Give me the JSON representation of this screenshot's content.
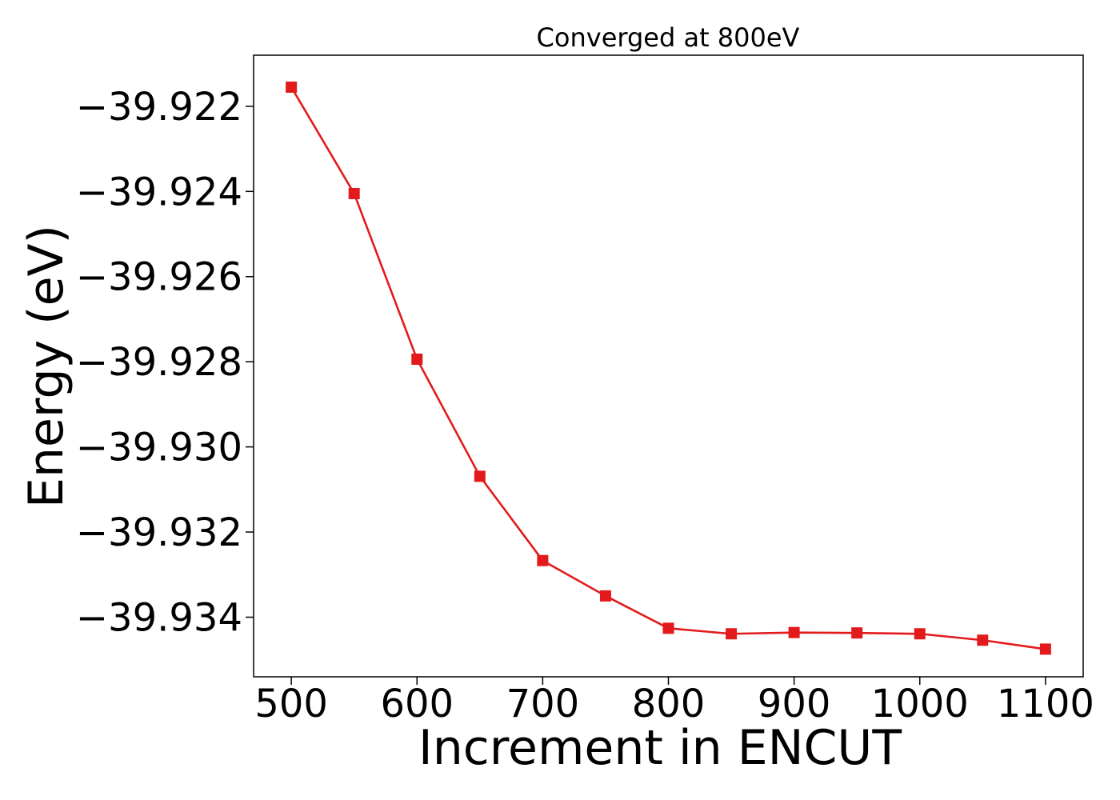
{
  "chart_data": {
    "type": "line",
    "title": "Converged at 800eV",
    "xlabel": "Increment in ENCUT",
    "ylabel": "Energy (eV)",
    "xlim": [
      470,
      1130
    ],
    "ylim": [
      -39.9354,
      -39.9208
    ],
    "xticks": [
      500,
      600,
      700,
      800,
      900,
      1000,
      1100
    ],
    "xtick_labels": [
      "500",
      "600",
      "700",
      "800",
      "900",
      "1000",
      "1100"
    ],
    "yticks": [
      -39.922,
      -39.924,
      -39.926,
      -39.928,
      -39.93,
      -39.932,
      -39.934
    ],
    "ytick_labels": [
      "−39.922",
      "−39.924",
      "−39.926",
      "−39.928",
      "−39.930",
      "−39.932",
      "−39.934"
    ],
    "grid": false,
    "series": [
      {
        "color": "#e31a1c",
        "marker": "square",
        "x": [
          500,
          550,
          600,
          650,
          700,
          750,
          800,
          850,
          900,
          950,
          1000,
          1050,
          1100
        ],
        "y": [
          -39.92155,
          -39.92405,
          -39.92794,
          -39.93069,
          -39.93267,
          -39.9335,
          -39.93426,
          -39.93439,
          -39.93436,
          -39.93437,
          -39.93439,
          -39.93454,
          -39.93475
        ]
      }
    ]
  }
}
